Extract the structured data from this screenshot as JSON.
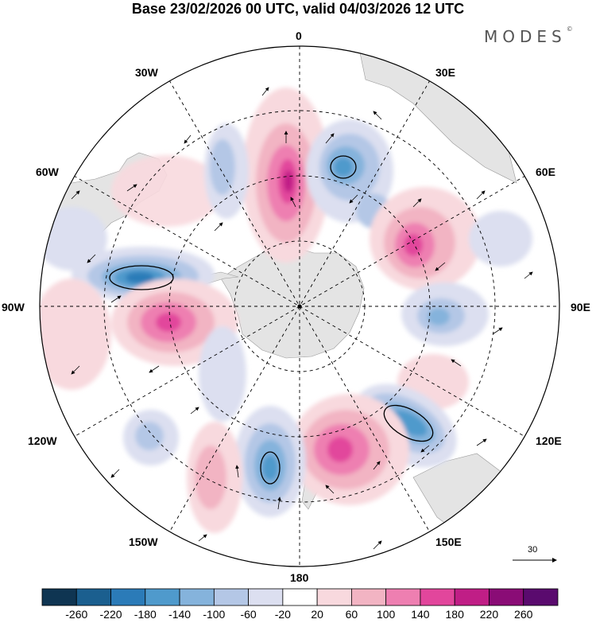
{
  "title": "Base 23/02/2026 00 UTC, valid 04/03/2026 12 UTC",
  "brand": "MODES",
  "brand_mark": "©",
  "longitude_labels": {
    "lon_0": "0",
    "lon_30e": "30E",
    "lon_60e": "60E",
    "lon_90e": "90E",
    "lon_120e": "120E",
    "lon_150e": "150E",
    "lon_180": "180",
    "lon_150w": "150W",
    "lon_120w": "120W",
    "lon_90w": "90W",
    "lon_60w": "60W",
    "lon_30w": "30W"
  },
  "reference_vector": "30",
  "colorbar": {
    "labels": [
      "-260",
      "-220",
      "-180",
      "-140",
      "-100",
      "-60",
      "-20",
      "20",
      "60",
      "100",
      "140",
      "180",
      "220",
      "260"
    ],
    "colors": [
      "#0f3552",
      "#1b5f8f",
      "#2b7bb8",
      "#4f9acc",
      "#85b3dc",
      "#b4c7e6",
      "#dcdff0",
      "#ffffff",
      "#f8d9de",
      "#f2b4c3",
      "#ee7fb1",
      "#e2469c",
      "#c01e86",
      "#8a0c76",
      "#5a0a6e"
    ]
  },
  "colors": {
    "land": "#e4e4e4",
    "grid": "#000000"
  }
}
